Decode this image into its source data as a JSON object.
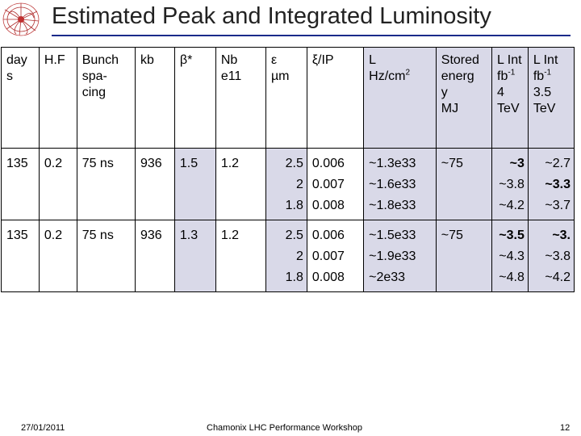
{
  "title": "Estimated Peak and Integrated Luminosity",
  "colors": {
    "title_rule": "#1a2a8a",
    "shaded_cells": "#d9d9e8"
  },
  "logo_icon": "particle-collision-logo",
  "headers": {
    "day": "day s",
    "hf": "H.F",
    "bunch": [
      "Bunch",
      "spa-",
      "cing"
    ],
    "kb": "kb",
    "beta": "β*",
    "nb": [
      "Nb",
      "e11"
    ],
    "eps": [
      "ε",
      "µm"
    ],
    "xi": "ξ/IP",
    "l": [
      "L",
      "Hz/cm"
    ],
    "l_sup": "2",
    "stored": [
      "Stored",
      "energ",
      "y",
      "MJ"
    ],
    "lint4": [
      "L Int",
      "fb",
      "4",
      "TeV"
    ],
    "lint4_sup": "-1",
    "lint35": [
      "L Int",
      "fb",
      "3.5",
      "TeV"
    ],
    "lint35_sup": "-1"
  },
  "rows": [
    {
      "day": "135",
      "hf": "0.2",
      "bunch": "75 ns",
      "kb": "936",
      "beta": "1.5",
      "nb": "1.2",
      "eps": [
        "2.5",
        "2",
        "1.8"
      ],
      "xi": [
        "0.006",
        "0.007",
        "0.008"
      ],
      "l": [
        "~1.3e33",
        "~1.6e33",
        "~1.8e33"
      ],
      "stored": "~75",
      "lint4": [
        "~3",
        "~3.8",
        "~4.2"
      ],
      "lint35": [
        "~2.7",
        "~3.3",
        "~3.7"
      ]
    },
    {
      "day": "135",
      "hf": "0.2",
      "bunch": "75 ns",
      "kb": "936",
      "beta": "1.3",
      "nb": "1.2",
      "eps": [
        "2.5",
        "2",
        "1.8"
      ],
      "xi": [
        "0.006",
        "0.007",
        "0.008"
      ],
      "l": [
        "~1.5e33",
        "~1.9e33",
        "~2e33"
      ],
      "stored": "~75",
      "lint4": [
        "~3.5",
        "~4.3",
        "~4.8"
      ],
      "lint35": [
        "~3.",
        "~3.8",
        "~4.2"
      ]
    }
  ],
  "footer": {
    "date": "27/01/2011",
    "event": "Chamonix LHC Performance Workshop",
    "page": "12"
  }
}
